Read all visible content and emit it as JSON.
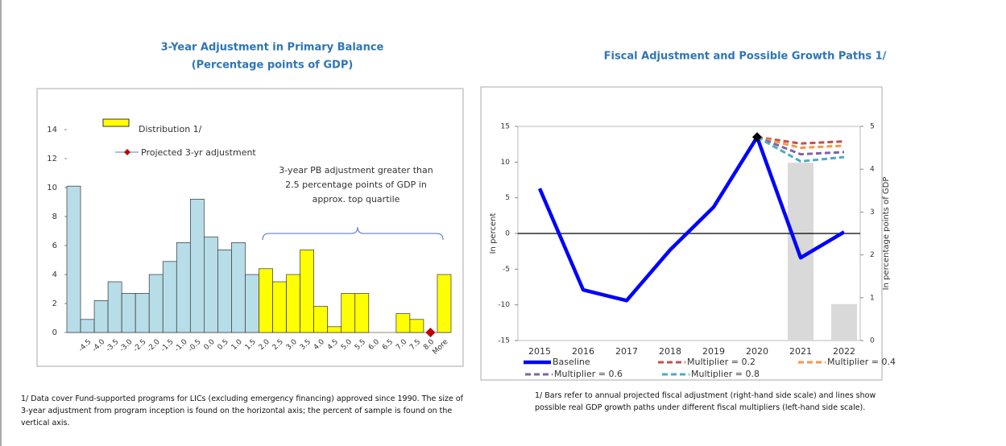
{
  "chart_data": [
    {
      "type": "bar",
      "title": "3-Year Adjustment in Primary Balance",
      "subtitle": "(Percentage points of GDP)",
      "categories": [
        null,
        "-4.5",
        "-4.0",
        "-3.5",
        "-3.0",
        "-2.5",
        "-2.0",
        "-1.5",
        "-1.0",
        "-0.5",
        "0.0",
        "0.5",
        "1.0",
        "1.5",
        "2.0",
        "2.5",
        "3.0",
        "3.5",
        "4.0",
        "4.5",
        "5.0",
        "5.5",
        "6.0",
        "6.5",
        "7.0",
        "7.5",
        "8.0",
        "More"
      ],
      "series": [
        {
          "name": "Distribution 1/",
          "type": "bar",
          "color": "#ffff00",
          "values": [
            10.1,
            0.9,
            2.2,
            3.5,
            2.7,
            2.7,
            4.0,
            4.9,
            6.2,
            9.2,
            6.6,
            5.7,
            6.2,
            4.0,
            4.4,
            3.5,
            4.0,
            5.7,
            1.8,
            0.4,
            2.7,
            2.7,
            0,
            0,
            1.3,
            0.9,
            0,
            4.0
          ],
          "colors": [
            "#b7dde8",
            "#b7dde8",
            "#b7dde8",
            "#b7dde8",
            "#b7dde8",
            "#b7dde8",
            "#b7dde8",
            "#b7dde8",
            "#b7dde8",
            "#b7dde8",
            "#b7dde8",
            "#b7dde8",
            "#b7dde8",
            "#b7dde8",
            "#ffff00",
            "#ffff00",
            "#ffff00",
            "#ffff00",
            "#ffff00",
            "#ffff00",
            "#ffff00",
            "#ffff00",
            "#ffff00",
            "#ffff00",
            "#ffff00",
            "#ffff00",
            "#ffff00",
            "#ffff00"
          ]
        },
        {
          "name": "Projected 3-yr adjustment",
          "type": "marker",
          "color": "#c00000",
          "values": [
            null,
            null,
            null,
            null,
            null,
            null,
            null,
            null,
            null,
            null,
            null,
            null,
            null,
            null,
            null,
            null,
            null,
            null,
            null,
            null,
            null,
            null,
            null,
            null,
            null,
            null,
            0,
            null
          ]
        }
      ],
      "annotation": [
        "3-year PB adjustment  greater than",
        "2.5 percentage points of GDP in",
        "approx. top quartile"
      ],
      "ylim": [
        0,
        15
      ],
      "yticks": [
        0,
        2,
        4,
        6,
        8,
        10,
        12,
        14
      ],
      "note": "1/ Data cover Fund-supported programs for LICs (excluding emergency financing) approved since 1990. The size of 3-year adjustment from program inception is found on the horizontal axis; the percent of sample is found on the vertical axis."
    },
    {
      "type": "line",
      "title": "Fiscal Adjustment and Possible Growth Paths 1/",
      "categories": [
        "2015",
        "2016",
        "2017",
        "2018",
        "2019",
        "2020",
        "2021",
        "2022"
      ],
      "ylabel": "In percent",
      "y2label": "In percentage points of GDP",
      "ylim": [
        -15,
        15
      ],
      "yticks": [
        -15,
        -10,
        -5,
        0,
        5,
        10,
        15
      ],
      "y2lim": [
        0,
        5
      ],
      "y2ticks": [
        0,
        1,
        2,
        3,
        4,
        5
      ],
      "series": [
        {
          "type": "bar",
          "axis": "y2",
          "color": "#d9d9d9",
          "values": [
            null,
            null,
            null,
            null,
            null,
            null,
            4.15,
            0.85
          ]
        },
        {
          "name": "Baseline",
          "type": "line",
          "color": "#0000ff",
          "values": [
            6.3,
            -7.9,
            -9.4,
            -2.3,
            3.7,
            13.5,
            -3.4,
            0.2
          ]
        },
        {
          "name": "Multiplier = 0.2",
          "type": "line",
          "dashed": true,
          "color": "#c0504d",
          "values": [
            null,
            null,
            null,
            null,
            null,
            13.5,
            12.6,
            12.9
          ]
        },
        {
          "name": "Multiplier = 0.4",
          "type": "line",
          "dashed": true,
          "color": "#f79646",
          "values": [
            null,
            null,
            null,
            null,
            null,
            13.5,
            12.0,
            12.3
          ]
        },
        {
          "name": "Multiplier = 0.6",
          "type": "line",
          "dashed": true,
          "color": "#8064a2",
          "values": [
            null,
            null,
            null,
            null,
            null,
            13.5,
            11.1,
            11.4
          ]
        },
        {
          "name": "Multiplier = 0.8",
          "type": "line",
          "dashed": true,
          "color": "#4bacc6",
          "values": [
            null,
            null,
            null,
            null,
            null,
            13.5,
            10.1,
            10.7
          ]
        },
        {
          "type": "marker",
          "color": "#000000",
          "values": [
            null,
            null,
            null,
            null,
            null,
            13.5,
            null,
            null
          ]
        }
      ],
      "note": "1/ Bars refer to annual projected fiscal adjustment (right-hand side scale) and lines show possible real GDP growth paths under different fiscal multipliers (left-hand side scale)."
    }
  ]
}
